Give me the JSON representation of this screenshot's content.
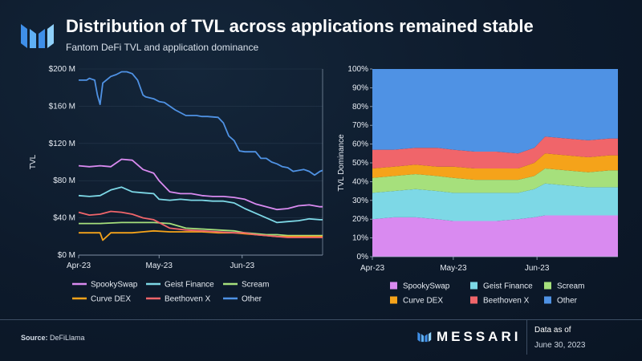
{
  "header": {
    "title": "Distribution of TVL across applications remained stable",
    "subtitle": "Fantom DeFi TVL and application dominance"
  },
  "footer": {
    "source_label": "Source:",
    "source_value": "DeFiLlama",
    "brand": "MESSARI",
    "asof_label": "Data as of",
    "asof_date": "June 30, 2023"
  },
  "colors": {
    "SpookySwap": "#d98af0",
    "Geist Finance": "#7dd8e6",
    "Scream": "#a6e07c",
    "Curve DEX": "#f5a31a",
    "Beethoven X": "#f0656a",
    "Other": "#4f92e4"
  },
  "chart_data": [
    {
      "type": "line",
      "title": "Fantom DeFi TVL",
      "ylabel": "TVL",
      "xlabel": "",
      "ylim": [
        0,
        200
      ],
      "y_unit": "$M",
      "yticks": [
        "$0 M",
        "$40 M",
        "$80 M",
        "$120 M",
        "$160 M",
        "$200 M"
      ],
      "xticks": [
        "Apr-23",
        "May-23",
        "Jun-23"
      ],
      "xtick_days": [
        0,
        30,
        61
      ],
      "x_range": [
        0,
        91
      ],
      "series": [
        {
          "name": "SpookySwap",
          "x": [
            0,
            4,
            8,
            12,
            16,
            20,
            24,
            28,
            30,
            34,
            38,
            42,
            46,
            50,
            54,
            58,
            62,
            66,
            70,
            74,
            78,
            82,
            86,
            90,
            91
          ],
          "values": [
            96,
            95,
            96,
            95,
            103,
            102,
            92,
            88,
            80,
            68,
            66,
            66,
            64,
            63,
            63,
            62,
            60,
            55,
            52,
            49,
            50,
            53,
            54,
            52,
            52
          ]
        },
        {
          "name": "Geist Finance",
          "x": [
            0,
            4,
            8,
            12,
            16,
            20,
            24,
            28,
            30,
            34,
            38,
            42,
            46,
            50,
            54,
            58,
            62,
            66,
            70,
            74,
            78,
            82,
            86,
            90,
            91
          ],
          "values": [
            64,
            63,
            64,
            70,
            73,
            68,
            67,
            66,
            60,
            59,
            60,
            59,
            59,
            58,
            58,
            56,
            50,
            45,
            40,
            35,
            36,
            37,
            39,
            38,
            38
          ]
        },
        {
          "name": "Scream",
          "x": [
            0,
            8,
            16,
            24,
            28,
            34,
            40,
            46,
            52,
            58,
            62,
            66,
            70,
            74,
            78,
            82,
            86,
            91
          ],
          "values": [
            34,
            34,
            35,
            35,
            35,
            34,
            29,
            28,
            27,
            26,
            24,
            23,
            22,
            22,
            21,
            21,
            21,
            21
          ]
        },
        {
          "name": "Curve DEX",
          "x": [
            0,
            6,
            8,
            9,
            12,
            16,
            20,
            24,
            28,
            34,
            40,
            46,
            52,
            58,
            62,
            66,
            70,
            74,
            78,
            82,
            86,
            91
          ],
          "values": [
            24,
            24,
            24,
            16,
            24,
            24,
            24,
            25,
            26,
            25,
            25,
            25,
            24,
            24,
            23,
            22,
            21,
            20,
            20,
            20,
            20,
            20
          ]
        },
        {
          "name": "Beethoven X",
          "x": [
            0,
            4,
            8,
            12,
            16,
            20,
            24,
            28,
            34,
            40,
            46,
            52,
            58,
            62,
            66,
            70,
            74,
            78,
            82,
            86,
            91
          ],
          "values": [
            46,
            43,
            44,
            47,
            46,
            44,
            40,
            38,
            29,
            27,
            26,
            25,
            24,
            24,
            22,
            21,
            20,
            19,
            19,
            19,
            19
          ]
        },
        {
          "name": "Other",
          "x": [
            0,
            3,
            4,
            5,
            6,
            7,
            8,
            9,
            12,
            14,
            16,
            18,
            20,
            22,
            24,
            25,
            28,
            30,
            32,
            34,
            36,
            40,
            44,
            46,
            48,
            52,
            54,
            56,
            58,
            60,
            62,
            64,
            66,
            68,
            70,
            72,
            74,
            76,
            78,
            80,
            84,
            86,
            88,
            90,
            91
          ],
          "values": [
            188,
            188,
            190,
            189,
            188,
            172,
            162,
            185,
            192,
            194,
            197,
            197,
            195,
            188,
            172,
            170,
            168,
            165,
            164,
            160,
            156,
            150,
            150,
            149,
            149,
            148,
            142,
            128,
            123,
            112,
            111,
            111,
            111,
            104,
            104,
            100,
            98,
            95,
            94,
            90,
            92,
            90,
            86,
            90,
            91
          ]
        }
      ]
    },
    {
      "type": "area",
      "stacked": true,
      "title": "Application dominance",
      "ylabel": "TVL Dominance",
      "xlabel": "",
      "ylim": [
        0,
        100
      ],
      "y_unit": "%",
      "yticks": [
        "0%",
        "10%",
        "20%",
        "30%",
        "40%",
        "50%",
        "60%",
        "70%",
        "80%",
        "90%",
        "100%"
      ],
      "xticks": [
        "Apr-23",
        "May-23",
        "Jun-23"
      ],
      "xtick_days": [
        0,
        30,
        61
      ],
      "x_range": [
        0,
        91
      ],
      "x": [
        0,
        8,
        16,
        24,
        30,
        38,
        46,
        54,
        60,
        64,
        72,
        80,
        88,
        91
      ],
      "series": [
        {
          "name": "SpookySwap",
          "values": [
            20,
            21,
            21,
            20,
            19,
            19,
            19,
            20,
            21,
            22,
            22,
            22,
            22,
            22
          ]
        },
        {
          "name": "Geist Finance",
          "values": [
            14,
            14,
            15,
            15,
            15,
            15,
            15,
            14,
            15,
            17,
            16,
            15,
            15,
            15
          ]
        },
        {
          "name": "Scream",
          "values": [
            8,
            8,
            8,
            8,
            8,
            7,
            7,
            7,
            7,
            8,
            8,
            8,
            9,
            9
          ]
        },
        {
          "name": "Curve DEX",
          "values": [
            5,
            5,
            5,
            5,
            6,
            6,
            6,
            6,
            7,
            8,
            8,
            8,
            8,
            8
          ]
        },
        {
          "name": "Beethoven X",
          "values": [
            10,
            9,
            9,
            10,
            9,
            9,
            9,
            8,
            8,
            9,
            9,
            9,
            9,
            9
          ]
        },
        {
          "name": "Other",
          "values": [
            43,
            43,
            42,
            42,
            43,
            44,
            44,
            45,
            42,
            36,
            37,
            38,
            37,
            37
          ]
        }
      ]
    }
  ],
  "legend": [
    "SpookySwap",
    "Geist Finance",
    "Scream",
    "Curve DEX",
    "Beethoven X",
    "Other"
  ]
}
